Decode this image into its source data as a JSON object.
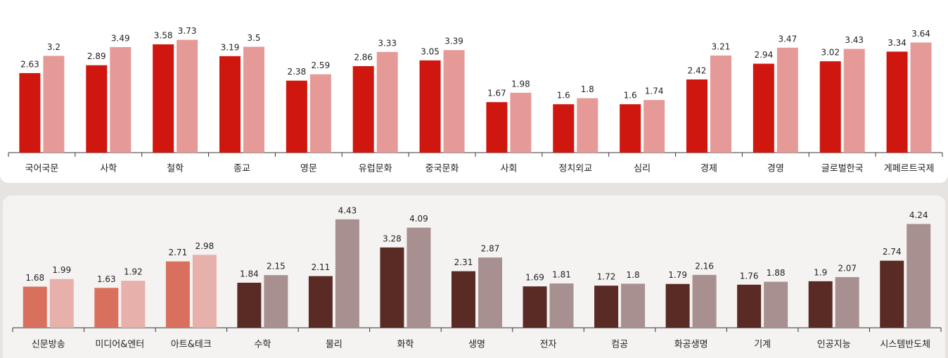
{
  "chart_data": [
    {
      "type": "bar",
      "categories": [
        "국어국문",
        "사학",
        "철학",
        "종교",
        "영문",
        "유럽문화",
        "중국문화",
        "사회",
        "정치외교",
        "심리",
        "경제",
        "경영",
        "글로벌한국",
        "게페르트국제"
      ],
      "series": [
        {
          "color": "#d0170f",
          "values": [
            2.63,
            2.89,
            3.58,
            3.19,
            2.38,
            2.86,
            3.05,
            1.67,
            1.6,
            1.6,
            2.42,
            2.94,
            3.02,
            3.34
          ]
        },
        {
          "color": "#e69a98",
          "values": [
            3.2,
            3.49,
            3.73,
            3.5,
            2.59,
            3.33,
            3.39,
            1.98,
            1.8,
            1.74,
            3.21,
            3.47,
            3.43,
            3.64
          ]
        }
      ],
      "ylim": [
        0,
        5
      ]
    },
    {
      "type": "bar",
      "categories": [
        "신문방송",
        "미디어&엔터",
        "아트&테크",
        "수학",
        "물리",
        "화학",
        "생명",
        "전자",
        "컴공",
        "화공생명",
        "기계",
        "인공지능",
        "시스템반도체"
      ],
      "series": [
        {
          "colors": [
            "#d9705e",
            "#d9705e",
            "#d9705e",
            "#5a2a24",
            "#5a2a24",
            "#5a2a24",
            "#5a2a24",
            "#5a2a24",
            "#5a2a24",
            "#5a2a24",
            "#5a2a24",
            "#5a2a24",
            "#5a2a24"
          ],
          "values": [
            1.68,
            1.63,
            2.71,
            1.84,
            2.11,
            3.28,
            2.31,
            1.69,
            1.72,
            1.79,
            1.76,
            1.9,
            2.74
          ]
        },
        {
          "colors": [
            "#e8b0aa",
            "#e8b0aa",
            "#e8b0aa",
            "#a89090",
            "#a89090",
            "#a89090",
            "#a89090",
            "#a89090",
            "#a89090",
            "#a89090",
            "#a89090",
            "#a89090",
            "#a89090"
          ],
          "values": [
            1.99,
            1.92,
            2.98,
            2.15,
            4.43,
            4.09,
            2.87,
            1.81,
            1.8,
            2.16,
            1.88,
            2.07,
            4.24
          ]
        }
      ],
      "ylim": [
        0,
        5
      ]
    }
  ]
}
